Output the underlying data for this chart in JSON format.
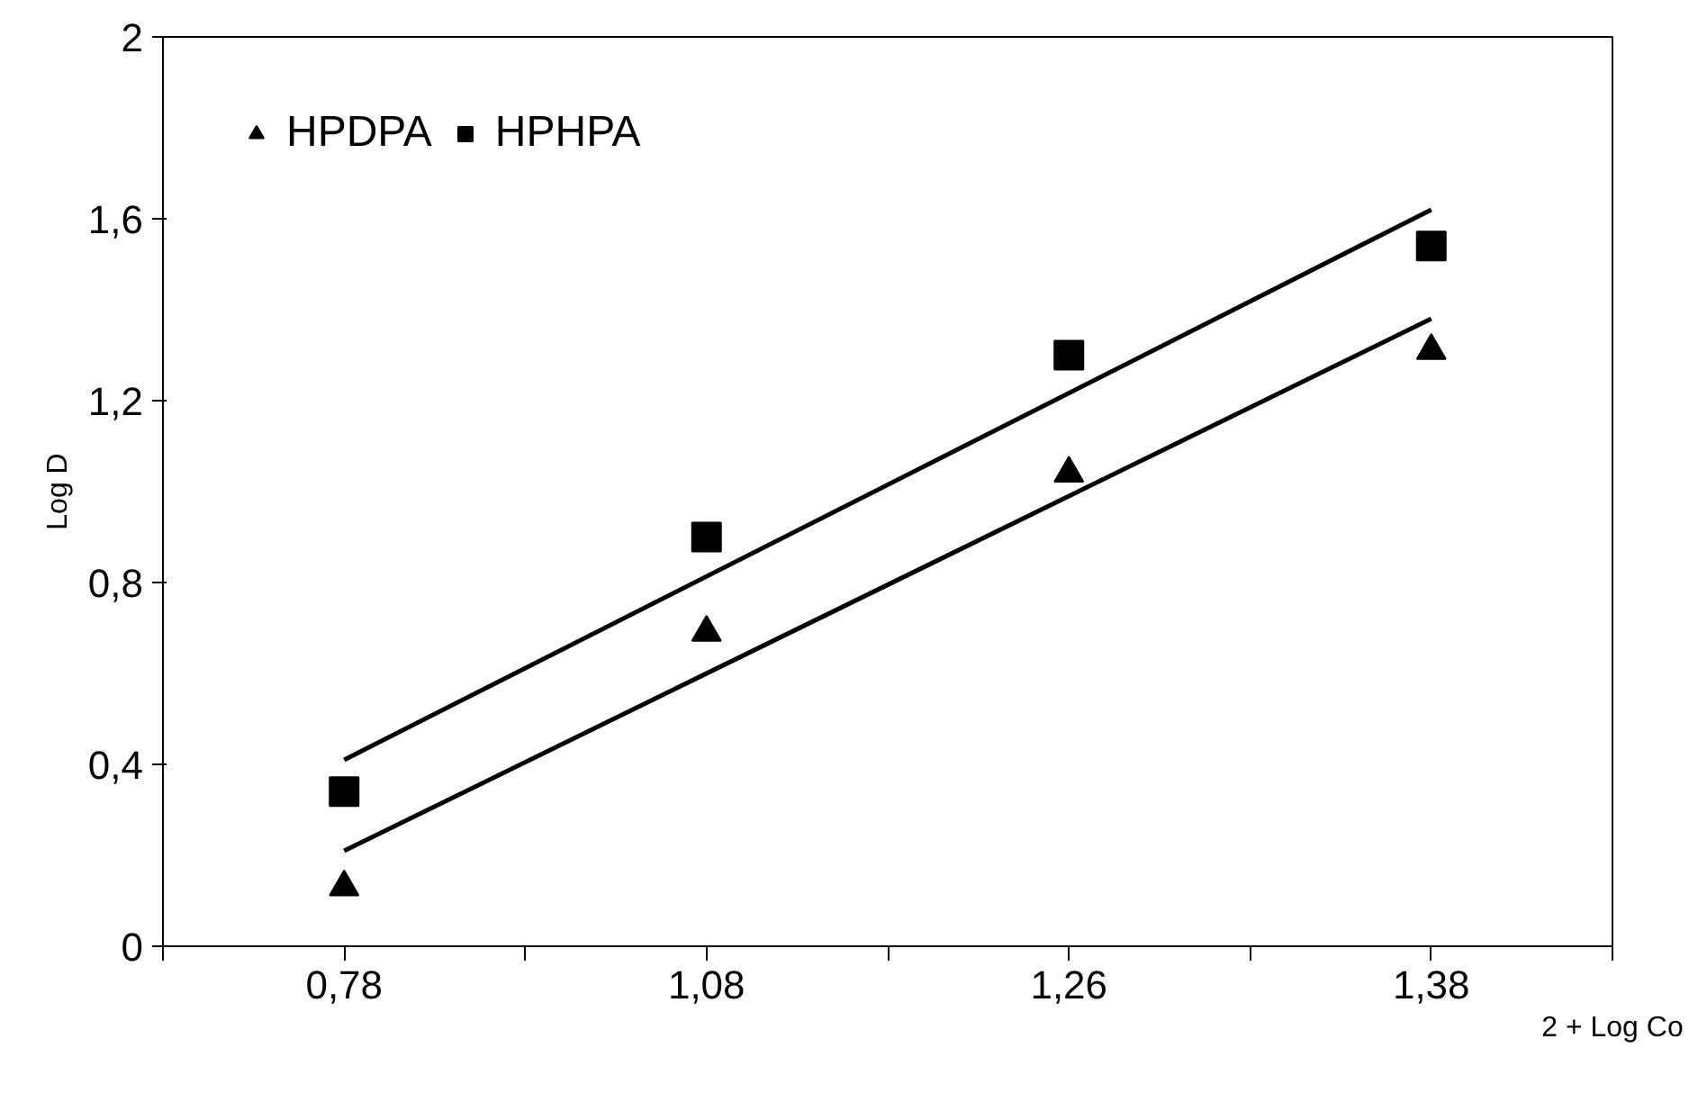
{
  "chart_data": {
    "type": "scatter",
    "xlabel": "2 + Log Co",
    "ylabel": "Log D",
    "categories": [
      "0,78",
      "1,08",
      "1,26",
      "1,38"
    ],
    "series": [
      {
        "name": "HPDPA",
        "color": "#000000",
        "marker": "triangle",
        "values": [
          0.13,
          0.69,
          1.04,
          1.31
        ]
      },
      {
        "name": "HPHPA",
        "color": "#000000",
        "marker": "square",
        "values": [
          0.34,
          0.9,
          1.3,
          1.54
        ]
      },
      {
        "type": "line",
        "color": "#000000",
        "x": [
          "0,78",
          "1,38"
        ],
        "values": [
          0.21,
          1.38
        ]
      },
      {
        "type": "line",
        "color": "#000000",
        "x": [
          "0,78",
          "1,38"
        ],
        "values": [
          0.41,
          1.62
        ]
      }
    ],
    "ylim": [
      0,
      2
    ],
    "yticks": [
      {
        "value": 0,
        "label": "0"
      },
      {
        "value": 0.4,
        "label": "0,4"
      },
      {
        "value": 0.8,
        "label": "0,8"
      },
      {
        "value": 1.2,
        "label": "1,2"
      },
      {
        "value": 1.6,
        "label": "1,6"
      },
      {
        "value": 2,
        "label": "2"
      }
    ],
    "grid": false,
    "legend": "top left"
  }
}
